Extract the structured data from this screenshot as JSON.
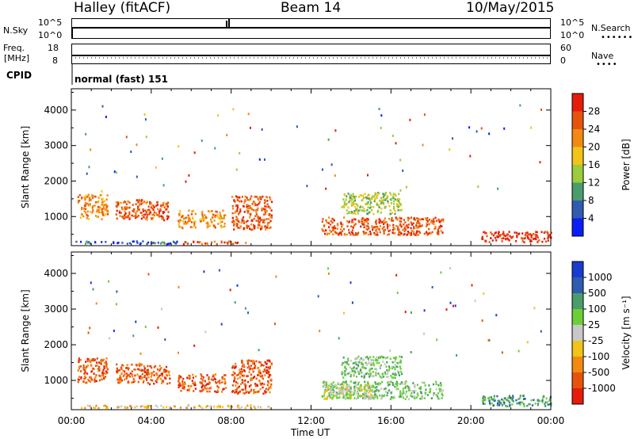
{
  "header": {
    "station": "Halley (fitACF)",
    "beam": "Beam 14",
    "date": "10/May/2015"
  },
  "nsky_panel": {
    "left_label": "N.Sky",
    "left_ticks": [
      "10^5",
      "10^0"
    ],
    "right_label": "N.Search",
    "right_ticks": [
      "10^5",
      "10^0"
    ]
  },
  "freq_panel": {
    "left_label_1": "Freq.",
    "left_label_2": "[MHz]",
    "left_ticks": [
      "18",
      "8"
    ],
    "right_label": "Nave",
    "right_ticks": [
      "60",
      "0"
    ]
  },
  "cpid": {
    "label": "CPID",
    "value": "normal (fast) 151"
  },
  "x_axis": {
    "label": "Time UT",
    "ticks": [
      "00:00",
      "04:00",
      "08:00",
      "12:00",
      "16:00",
      "20:00",
      "00:00"
    ]
  },
  "colors": {
    "frame": "#000000"
  },
  "chart_data": [
    {
      "type": "heatmap",
      "name": "power",
      "ylabel": "Slant Range [km]",
      "yticks": [
        1000,
        2000,
        3000,
        4000
      ],
      "ylim": [
        180,
        4600
      ],
      "xlim_hours": [
        0,
        24
      ],
      "colorbar": {
        "label": "Power [dB]",
        "ticks": [
          "4",
          "8",
          "12",
          "16",
          "20",
          "24",
          "28"
        ],
        "colors": [
          "#0a1ef5",
          "#2f5bb0",
          "#4a9d6b",
          "#9ccc3c",
          "#f2c318",
          "#f28a12",
          "#e8530c",
          "#e51c0c"
        ]
      },
      "blobs": [
        {
          "t0": 0.3,
          "t1": 1.8,
          "r0": 950,
          "r1": 1650,
          "v": 5
        },
        {
          "t0": 2.2,
          "t1": 3.6,
          "r0": 950,
          "r1": 1500,
          "v": 6
        },
        {
          "t0": 3.6,
          "t1": 4.9,
          "r0": 900,
          "r1": 1450,
          "v": 6
        },
        {
          "t0": 5.3,
          "t1": 6.2,
          "r0": 700,
          "r1": 1200,
          "v": 5
        },
        {
          "t0": 6.4,
          "t1": 7.7,
          "r0": 700,
          "r1": 1200,
          "v": 5
        },
        {
          "t0": 8.0,
          "t1": 10.0,
          "r0": 650,
          "r1": 1600,
          "v": 6
        },
        {
          "t0": 0.2,
          "t1": 5.8,
          "r0": 250,
          "r1": 330,
          "v": 1
        },
        {
          "t0": 5.5,
          "t1": 8.7,
          "r0": 250,
          "r1": 330,
          "v": 6
        },
        {
          "t0": 12.5,
          "t1": 18.6,
          "r0": 500,
          "r1": 1000,
          "v": 6
        },
        {
          "t0": 13.5,
          "t1": 16.5,
          "r0": 1100,
          "r1": 1700,
          "v": 3
        },
        {
          "t0": 20.5,
          "t1": 24.0,
          "r0": 300,
          "r1": 600,
          "v": 7
        }
      ]
    },
    {
      "type": "heatmap",
      "name": "velocity",
      "ylabel": "Slant Range [km]",
      "yticks": [
        1000,
        2000,
        3000,
        4000
      ],
      "ylim": [
        180,
        4600
      ],
      "xlim_hours": [
        0,
        24
      ],
      "colorbar": {
        "label": "Velocity [m s⁻¹]",
        "ticks": [
          "-1000",
          "-500",
          "-100",
          "-25",
          "25",
          "100",
          "500",
          "1000"
        ],
        "colors": [
          "#e51c0c",
          "#e8530c",
          "#f28a12",
          "#f2c318",
          "#c8c8c8",
          "#6ccf3a",
          "#4a9d6b",
          "#2f5bb0",
          "#1a3bd0"
        ]
      },
      "blobs": [
        {
          "t0": 0.3,
          "t1": 1.8,
          "r0": 950,
          "r1": 1650,
          "v": 1
        },
        {
          "t0": 2.2,
          "t1": 3.6,
          "r0": 950,
          "r1": 1500,
          "v": 1
        },
        {
          "t0": 3.6,
          "t1": 4.9,
          "r0": 900,
          "r1": 1450,
          "v": 1
        },
        {
          "t0": 5.3,
          "t1": 6.2,
          "r0": 700,
          "r1": 1200,
          "v": 1
        },
        {
          "t0": 6.4,
          "t1": 7.7,
          "r0": 700,
          "r1": 1200,
          "v": 1
        },
        {
          "t0": 8.0,
          "t1": 10.0,
          "r0": 650,
          "r1": 1600,
          "v": 1
        },
        {
          "t0": 0.2,
          "t1": 10.0,
          "r0": 250,
          "r1": 330,
          "v": 3
        },
        {
          "t0": 12.5,
          "t1": 18.6,
          "r0": 500,
          "r1": 1000,
          "v": 5
        },
        {
          "t0": 13.5,
          "t1": 16.5,
          "r0": 1100,
          "r1": 1700,
          "v": 5
        },
        {
          "t0": 12.6,
          "t1": 15.0,
          "r0": 500,
          "r1": 900,
          "v": 4
        },
        {
          "t0": 20.5,
          "t1": 24.0,
          "r0": 300,
          "r1": 600,
          "v": 6
        }
      ]
    }
  ]
}
